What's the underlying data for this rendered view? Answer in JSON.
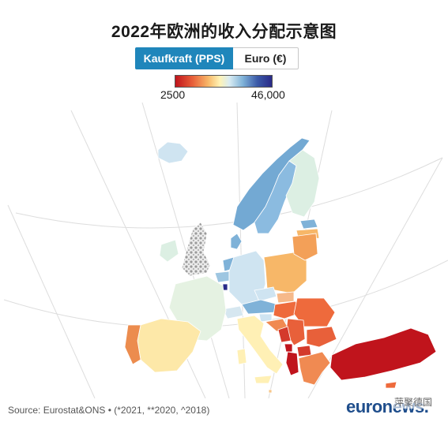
{
  "title": "2022年欧洲的收入分配示意图",
  "toggle": {
    "active_label": "Kaufkraft (PPS)",
    "inactive_label": "Euro (€)"
  },
  "legend": {
    "min_label": "2500",
    "max_label": "46,000",
    "colors": [
      "#c0141c",
      "#e8603a",
      "#f7b768",
      "#fff3b5",
      "#d9ecf2",
      "#7fb2d8",
      "#3b5aa8",
      "#2a2a88"
    ]
  },
  "source": "Source: Eurostat&ONS • (*2021, **2020, ^2018)",
  "logo": "euronews.",
  "watermark": "萍聚德国",
  "map_colors": {
    "iceland": "#cfe4f1",
    "norway": "#73a9d3",
    "sweden": "#8bbbe0",
    "finland": "#dcefe3",
    "estonia": "#7fb2d8",
    "latvia": "#f7b768",
    "lithuania": "#f7b768",
    "baltic_north": "#f3a058",
    "poland": "#f7b768",
    "germany": "#cfe4f1",
    "netherlands": "#7fb2d8",
    "belgium": "#9ec6e1",
    "luxembourg": "#2a2a88",
    "france": "#e5f2e2",
    "uk": "#bdbdbd",
    "ireland": "#dcefe3",
    "spain": "#fde8a8",
    "portugal": "#ec8c4e",
    "italy": "#fff0b5",
    "switzerland": "#d6e7f0",
    "austria": "#7fb2d8",
    "czechia": "#cfe4f1",
    "slovakia": "#f6b98a",
    "hungary": "#ee6a3c",
    "slovenia": "#cfe4f1",
    "croatia": "#f08a52",
    "romania": "#ee6a3c",
    "bulgaria": "#e8603a",
    "serbia": "#e8603a",
    "bosnia": "#d43a2c",
    "montenegro": "#c0141c",
    "albania": "#c0141c",
    "north_macedonia": "#d43a2c",
    "greece": "#f08a52",
    "turkey": "#c0141c",
    "cyprus": "#ee6a3c",
    "malta": "#f7c78a",
    "denmark": "#7fb2d8",
    "graticule": "#dddddd"
  }
}
